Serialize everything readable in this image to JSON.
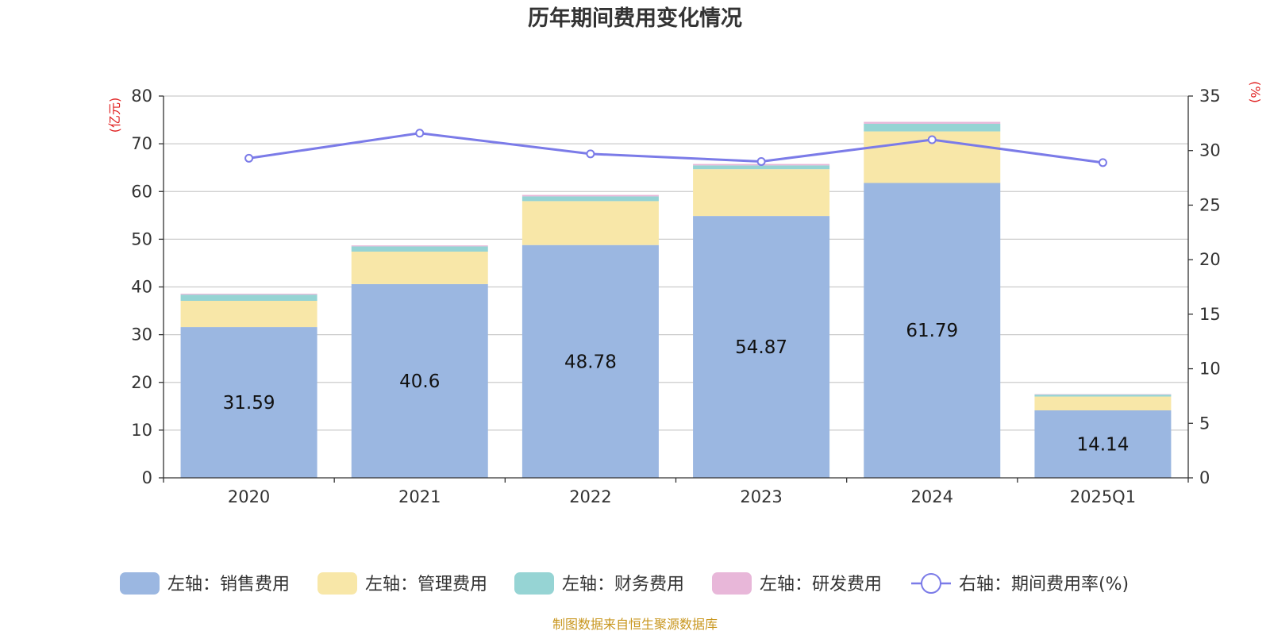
{
  "chart_data": {
    "type": "bar",
    "title": "历年期间费用变化情况",
    "categories": [
      "2020",
      "2021",
      "2022",
      "2023",
      "2024",
      "2025Q1"
    ],
    "left_axis": {
      "unit": "(亿元)",
      "ylim": [
        0,
        80
      ],
      "ticks": [
        0,
        10,
        20,
        30,
        40,
        50,
        60,
        70,
        80
      ]
    },
    "right_axis": {
      "unit": "(%)",
      "ylim": [
        0,
        35
      ],
      "ticks": [
        0,
        5,
        10,
        15,
        20,
        25,
        30,
        35
      ]
    },
    "series": [
      {
        "name": "左轴：销售费用",
        "type": "bar",
        "axis": "left",
        "color": "#9bb7e1",
        "values": [
          31.59,
          40.6,
          48.78,
          54.87,
          61.79,
          14.14
        ],
        "labels": [
          "31.59",
          "40.6",
          "48.78",
          "54.87",
          "61.79",
          "14.14"
        ]
      },
      {
        "name": "左轴：管理费用",
        "type": "bar",
        "axis": "left",
        "color": "#f8e7a8",
        "values": [
          5.5,
          6.8,
          9.2,
          9.8,
          10.8,
          2.9
        ]
      },
      {
        "name": "左轴：财务费用",
        "type": "bar",
        "axis": "left",
        "color": "#96d4d4",
        "values": [
          1.3,
          1.1,
          1.0,
          0.8,
          1.6,
          0.4
        ]
      },
      {
        "name": "左轴：研发费用",
        "type": "bar",
        "axis": "left",
        "color": "#e8b7d9",
        "values": [
          0.2,
          0.2,
          0.3,
          0.3,
          0.4,
          0.1
        ]
      },
      {
        "name": "右轴：期间费用率(%)",
        "type": "line",
        "axis": "right",
        "color": "#7b7be8",
        "values": [
          29.3,
          31.6,
          29.7,
          29.0,
          31.0,
          28.9
        ]
      }
    ],
    "grid": true,
    "legend": "bottom"
  },
  "source": "制图数据来自恒生聚源数据库"
}
